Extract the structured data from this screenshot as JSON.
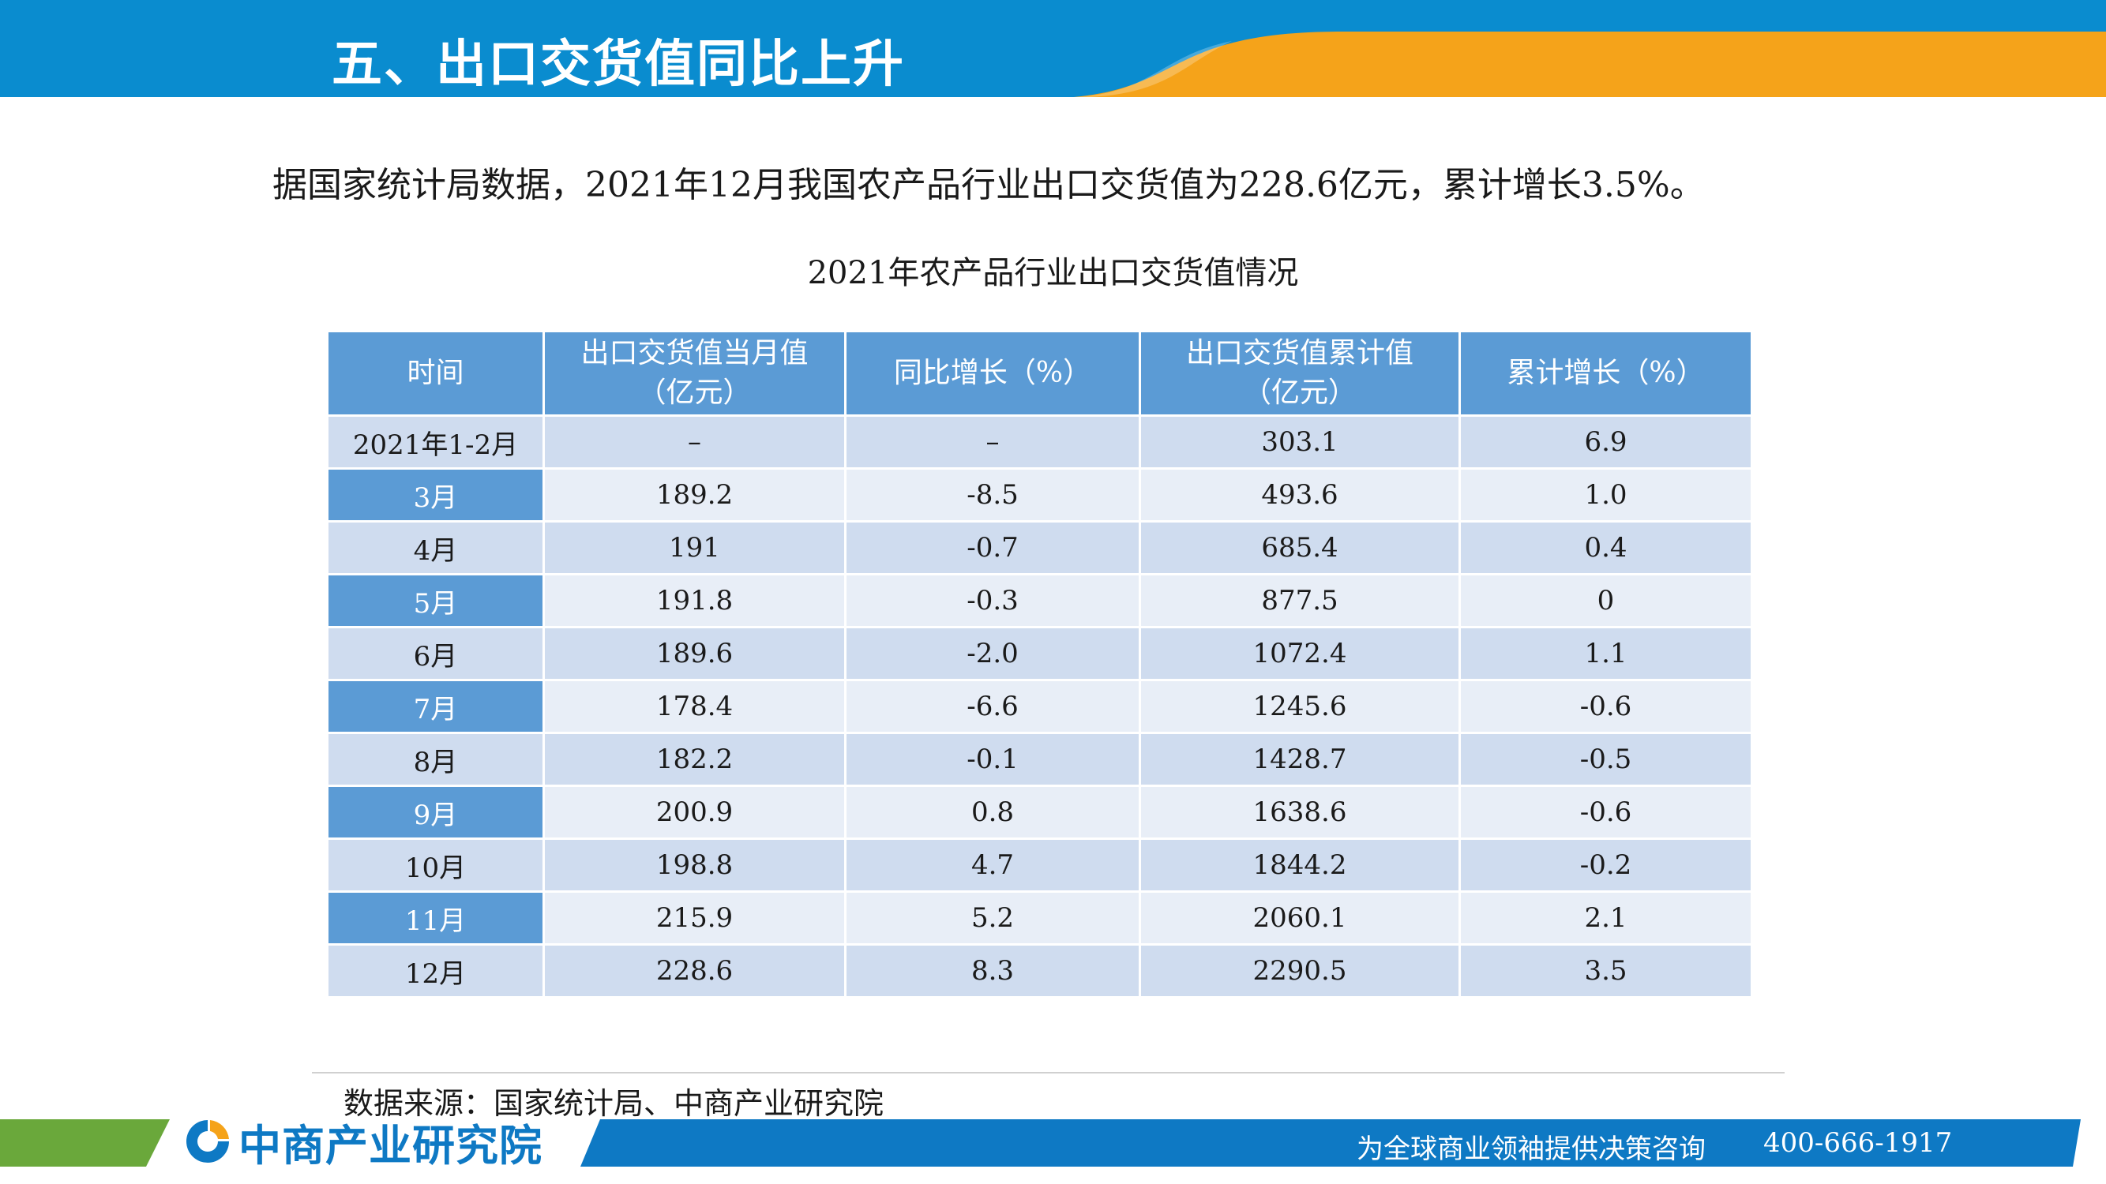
{
  "header": {
    "title": "五、出口交货值同比上升",
    "colors": {
      "banner_blue": "#0a8ccf",
      "banner_orange": "#f5a31a"
    }
  },
  "intro_text": "据国家统计局数据，2021年12月我国农产品行业出口交货值为228.6亿元，累计增长3.5%。",
  "table": {
    "caption": "2021年农产品行业出口交货值情况",
    "columns": [
      "时间",
      "出口交货值当月值\n（亿元）",
      "同比增长（%）",
      "出口交货值累计值\n（亿元）",
      "累计增长（%）"
    ],
    "header_line1": [
      "时间",
      "出口交货值当月值",
      "同比增长（%）",
      "出口交货值累计值",
      "累计增长（%）"
    ],
    "header_line2": [
      "",
      "（亿元）",
      "",
      "（亿元）",
      ""
    ],
    "rows": [
      [
        "2021年1-2月",
        "–",
        "–",
        "303.1",
        "6.9"
      ],
      [
        "3月",
        "189.2",
        "-8.5",
        "493.6",
        "1.0"
      ],
      [
        "4月",
        "191",
        "-0.7",
        "685.4",
        "0.4"
      ],
      [
        "5月",
        "191.8",
        "-0.3",
        "877.5",
        "0"
      ],
      [
        "6月",
        "189.6",
        "-2.0",
        "1072.4",
        "1.1"
      ],
      [
        "7月",
        "178.4",
        "-6.6",
        "1245.6",
        "-0.6"
      ],
      [
        "8月",
        "182.2",
        "-0.1",
        "1428.7",
        "-0.5"
      ],
      [
        "9月",
        "200.9",
        "0.8",
        "1638.6",
        "-0.6"
      ],
      [
        "10月",
        "198.8",
        "4.7",
        "1844.2",
        "-0.2"
      ],
      [
        "11月",
        "215.9",
        "5.2",
        "2060.1",
        "2.1"
      ],
      [
        "12月",
        "228.6",
        "8.3",
        "2290.5",
        "3.5"
      ]
    ],
    "colors": {
      "header": "#5b9bd5",
      "row_light": "#e8eef7",
      "row_dark": "#cfdcef"
    }
  },
  "source": "数据来源：国家统计局、中商产业研究院",
  "footer": {
    "logo_text": "中商产业研究院",
    "logo_icon": "askci-logo-icon",
    "slogan": "为全球商业领袖提供决策咨询",
    "phone": "400-666-1917",
    "colors": {
      "green": "#6aa83b",
      "blue": "#0e79c4"
    }
  }
}
